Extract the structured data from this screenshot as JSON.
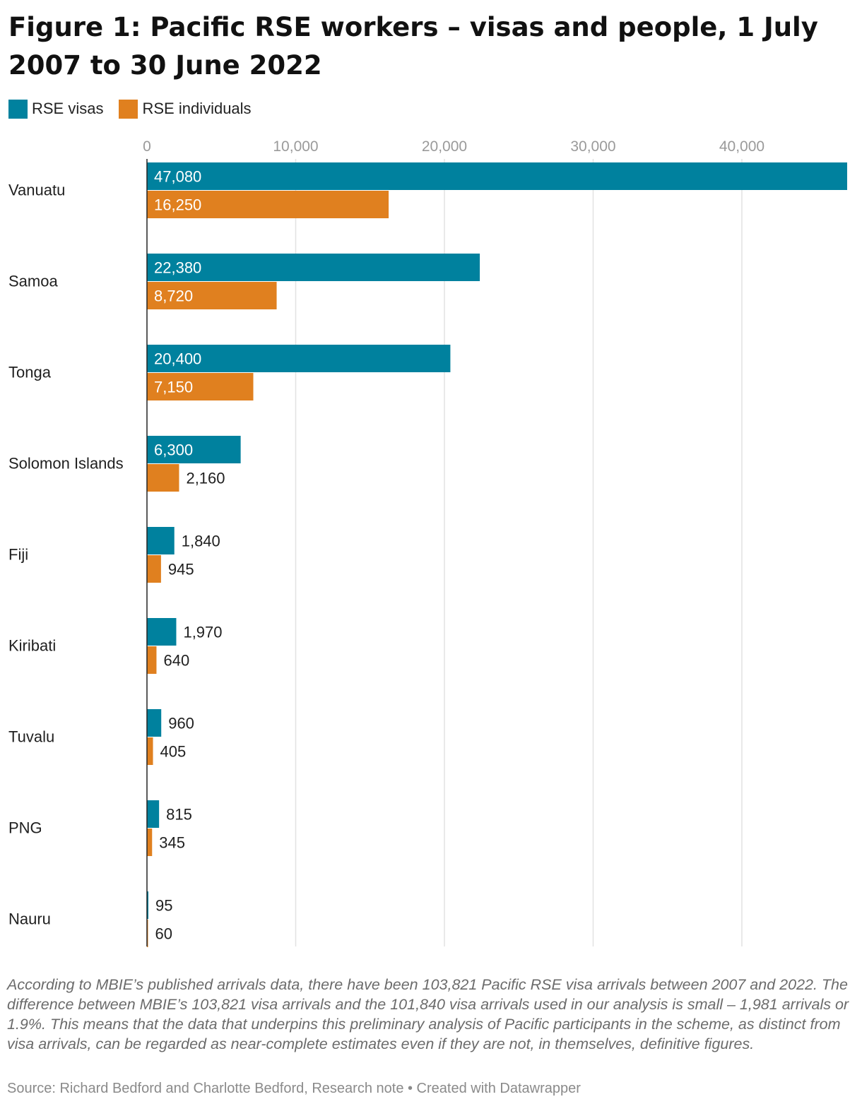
{
  "title": "Figure 1: Pacific RSE workers – visas and people, 1 July 2007 to 30 June 2022",
  "legend": [
    {
      "label": "RSE visas",
      "color": "#00819e"
    },
    {
      "label": "RSE individuals",
      "color": "#e0801f"
    }
  ],
  "chart_data": {
    "type": "bar",
    "orientation": "horizontal",
    "title": "Figure 1: Pacific RSE workers – visas and people, 1 July 2007 to 30 June 2022",
    "categories": [
      "Vanuatu",
      "Samoa",
      "Tonga",
      "Solomon Islands",
      "Fiji",
      "Kiribati",
      "Tuvalu",
      "PNG",
      "Nauru"
    ],
    "series": [
      {
        "name": "RSE visas",
        "color": "#00819e",
        "values": [
          47080,
          22380,
          20400,
          6300,
          1840,
          1970,
          960,
          815,
          95
        ],
        "labels": [
          "47,080",
          "22,380",
          "20,400",
          "6,300",
          "1,840",
          "1,970",
          "960",
          "815",
          "95"
        ]
      },
      {
        "name": "RSE individuals",
        "color": "#e0801f",
        "values": [
          16250,
          8720,
          7150,
          2160,
          945,
          640,
          405,
          345,
          60
        ],
        "labels": [
          "16,250",
          "8,720",
          "7,150",
          "2,160",
          "945",
          "640",
          "405",
          "345",
          "60"
        ]
      }
    ],
    "x_ticks": [
      0,
      10000,
      20000,
      30000,
      40000
    ],
    "x_tick_labels": [
      "0",
      "10,000",
      "20,000",
      "30,000",
      "40,000"
    ],
    "xlim": [
      0,
      47080
    ],
    "grid": true,
    "legend_position": "top-left"
  },
  "notes": "According to MBIE’s published arrivals data, there have been 103,821 Pacific RSE visa arrivals between 2007 and 2022. The difference between MBIE’s 103,821 visa arrivals and the 101,840 visa arrivals used in our analysis is small – 1,981 arrivals or 1.9%. This means that the data that underpins this preliminary analysis of Pacific participants in the scheme, as distinct from visa arrivals, can be regarded as near-complete estimates even if they are not, in themselves, definitive figures.",
  "source": "Source: Richard Bedford and Charlotte Bedford, Research note • Created with Datawrapper"
}
